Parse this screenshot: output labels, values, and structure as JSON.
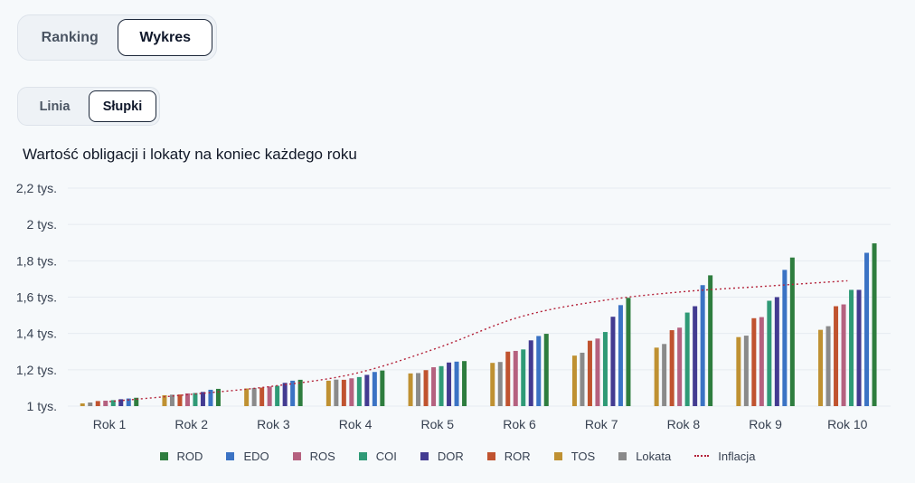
{
  "view_toggle": {
    "ranking_label": "Ranking",
    "wykres_label": "Wykres",
    "active": "Wykres"
  },
  "chart_toggle": {
    "linia_label": "Linia",
    "slupki_label": "Słupki",
    "active": "Słupki"
  },
  "chart_title": "Wartość obligacji i lokaty na koniec każdego roku",
  "colors": {
    "ROD": "#2e7d3e",
    "EDO": "#3b73c4",
    "ROS": "#b5617f",
    "COI": "#2f9a76",
    "DOR": "#433b91",
    "ROR": "#c0532f",
    "TOS": "#bf9132",
    "Lokata": "#8a8a8a",
    "Inflacja": "#b4233a"
  },
  "chart_data": {
    "type": "bar",
    "title": "Wartość obligacji i lokaty na koniec każdego roku",
    "xlabel": "",
    "ylabel": "",
    "ylim": [
      1000,
      2200
    ],
    "y_ticks": [
      1000,
      1200,
      1400,
      1600,
      1800,
      2000,
      2200
    ],
    "y_tick_labels": [
      "1 tys.",
      "1,2 tys.",
      "1,4 tys.",
      "1,6 tys.",
      "1,8 tys.",
      "2 tys.",
      "2,2 tys."
    ],
    "grid": true,
    "legend_position": "bottom",
    "categories": [
      "Rok 1",
      "Rok 2",
      "Rok 3",
      "Rok 4",
      "Rok 5",
      "Rok 6",
      "Rok 7",
      "Rok 8",
      "Rok 9",
      "Rok 10"
    ],
    "series": [
      {
        "name": "TOS",
        "values": [
          1015,
          1060,
          1097,
          1140,
          1180,
          1238,
          1278,
          1322,
          1380,
          1420
        ]
      },
      {
        "name": "Lokata",
        "values": [
          1020,
          1063,
          1100,
          1146,
          1182,
          1243,
          1294,
          1342,
          1388,
          1440
        ]
      },
      {
        "name": "ROR",
        "values": [
          1028,
          1064,
          1102,
          1145,
          1198,
          1300,
          1360,
          1418,
          1484,
          1550
        ]
      },
      {
        "name": "ROS",
        "values": [
          1030,
          1070,
          1108,
          1153,
          1214,
          1304,
          1372,
          1432,
          1490,
          1560
        ]
      },
      {
        "name": "COI",
        "values": [
          1033,
          1072,
          1112,
          1160,
          1220,
          1312,
          1408,
          1515,
          1580,
          1640
        ]
      },
      {
        "name": "DOR",
        "values": [
          1038,
          1078,
          1128,
          1172,
          1240,
          1362,
          1492,
          1550,
          1600,
          1640
        ]
      },
      {
        "name": "EDO",
        "values": [
          1042,
          1090,
          1140,
          1188,
          1245,
          1386,
          1556,
          1666,
          1750,
          1844
        ]
      },
      {
        "name": "ROD",
        "values": [
          1046,
          1095,
          1145,
          1196,
          1248,
          1398,
          1596,
          1720,
          1818,
          1896
        ]
      }
    ],
    "inflation": {
      "name": "Inflacja",
      "values": [
        1025,
        1065,
        1110,
        1180,
        1320,
        1490,
        1580,
        1630,
        1660,
        1690
      ]
    },
    "legend": [
      "ROD",
      "EDO",
      "ROS",
      "COI",
      "DOR",
      "ROR",
      "TOS",
      "Lokata",
      "Inflacja"
    ]
  }
}
